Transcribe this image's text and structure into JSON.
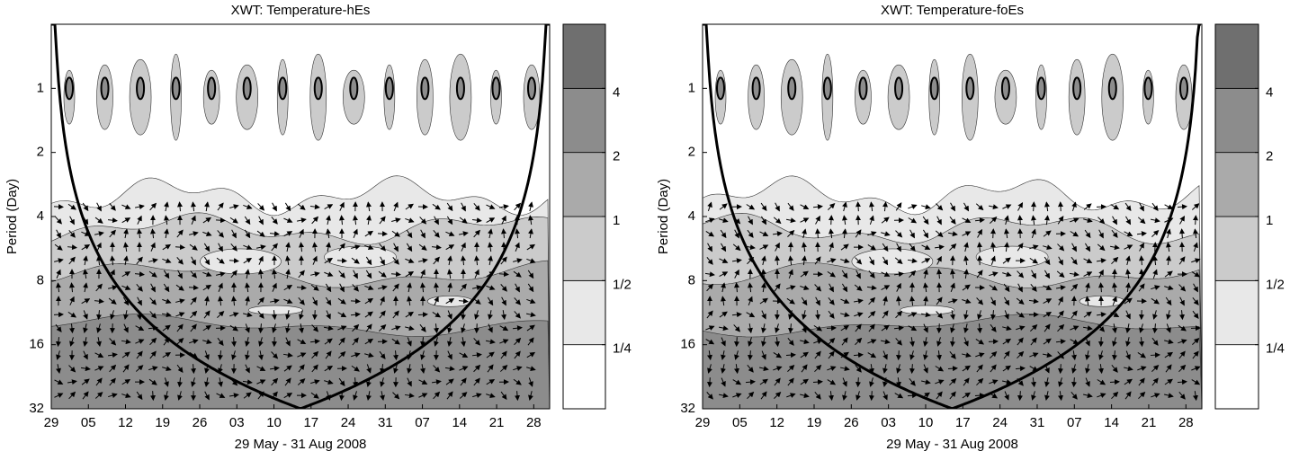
{
  "chart_data": [
    {
      "type": "wavelet-contour",
      "title": "XWT: Temperature-hEs",
      "xlabel": "29 May - 31 Aug 2008",
      "ylabel": "Period (Day)",
      "xlim": [
        "2008-05-29",
        "2008-08-31"
      ],
      "xticks": [
        {
          "value": "2008-05-29",
          "label": "29"
        },
        {
          "value": "2008-06-05",
          "label": "05"
        },
        {
          "value": "2008-06-12",
          "label": "12"
        },
        {
          "value": "2008-06-19",
          "label": "19"
        },
        {
          "value": "2008-06-26",
          "label": "26"
        },
        {
          "value": "2008-07-03",
          "label": "03"
        },
        {
          "value": "2008-07-10",
          "label": "10"
        },
        {
          "value": "2008-07-17",
          "label": "17"
        },
        {
          "value": "2008-07-24",
          "label": "24"
        },
        {
          "value": "2008-07-31",
          "label": "31"
        },
        {
          "value": "2008-08-07",
          "label": "07"
        },
        {
          "value": "2008-08-14",
          "label": "14"
        },
        {
          "value": "2008-08-21",
          "label": "21"
        },
        {
          "value": "2008-08-28",
          "label": "28"
        }
      ],
      "ylim": [
        0.5,
        32
      ],
      "yticks": [
        1,
        2,
        4,
        8,
        16,
        32
      ],
      "y_log": true,
      "colorbar": {
        "lim": [
          0.125,
          8
        ],
        "log": true,
        "ticks": [
          {
            "value": 0.25,
            "label": "1/4"
          },
          {
            "value": 0.5,
            "label": "1/2"
          },
          1,
          2,
          4
        ],
        "colors": [
          "#ffffff",
          "#e8e8e8",
          "#cbcbcb",
          "#aaaaaa",
          "#8c8c8c",
          "#6f6f6f"
        ]
      }
    },
    {
      "type": "wavelet-contour",
      "title": "XWT: Temperature-foEs",
      "xlabel": "29 May - 31 Aug 2008",
      "ylabel": "Period (Day)",
      "xlim": [
        "2008-05-29",
        "2008-08-31"
      ],
      "xticks": [
        {
          "value": "2008-05-29",
          "label": "29"
        },
        {
          "value": "2008-06-05",
          "label": "05"
        },
        {
          "value": "2008-06-12",
          "label": "12"
        },
        {
          "value": "2008-06-19",
          "label": "19"
        },
        {
          "value": "2008-06-26",
          "label": "26"
        },
        {
          "value": "2008-07-03",
          "label": "03"
        },
        {
          "value": "2008-07-10",
          "label": "10"
        },
        {
          "value": "2008-07-17",
          "label": "17"
        },
        {
          "value": "2008-07-24",
          "label": "24"
        },
        {
          "value": "2008-07-31",
          "label": "31"
        },
        {
          "value": "2008-08-07",
          "label": "07"
        },
        {
          "value": "2008-08-14",
          "label": "14"
        },
        {
          "value": "2008-08-21",
          "label": "21"
        },
        {
          "value": "2008-08-28",
          "label": "28"
        }
      ],
      "ylim": [
        0.5,
        32
      ],
      "yticks": [
        1,
        2,
        4,
        8,
        16,
        32
      ],
      "y_log": true,
      "colorbar": {
        "lim": [
          0.125,
          8
        ],
        "log": true,
        "ticks": [
          {
            "value": 0.25,
            "label": "1/4"
          },
          {
            "value": 0.5,
            "label": "1/2"
          },
          1,
          2,
          4
        ],
        "colors": [
          "#ffffff",
          "#e8e8e8",
          "#cbcbcb",
          "#aaaaaa",
          "#8c8c8c",
          "#6f6f6f"
        ]
      }
    }
  ]
}
